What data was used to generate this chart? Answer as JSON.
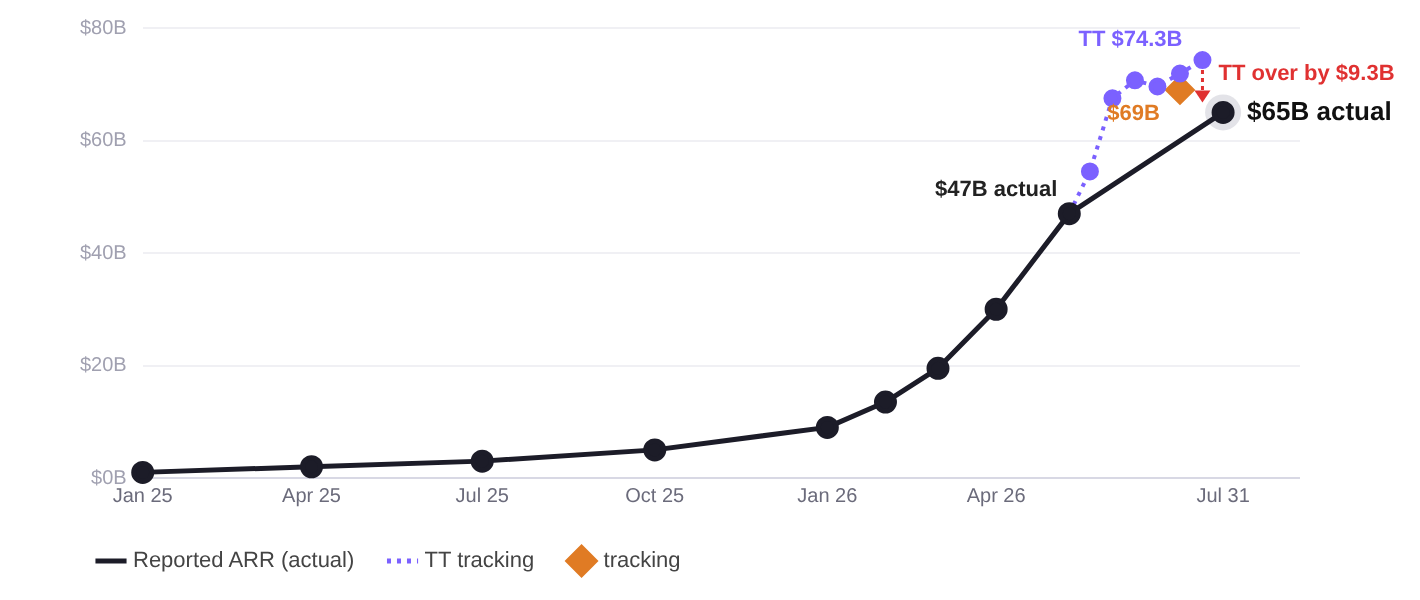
{
  "chart_data": {
    "type": "line",
    "xlim": [
      "2025-01-01",
      "2026-09-10"
    ],
    "xticks": [
      {
        "value": "2025-01-01",
        "label": "Jan 25"
      },
      {
        "value": "2025-04-01",
        "label": "Apr 25"
      },
      {
        "value": "2025-07-01",
        "label": "Jul 25"
      },
      {
        "value": "2025-10-01",
        "label": "Oct 25"
      },
      {
        "value": "2026-01-01",
        "label": "Jan 26"
      },
      {
        "value": "2026-04-01",
        "label": "Apr 26"
      },
      {
        "value": "2026-07-31",
        "label": "Jul 31"
      }
    ],
    "ylim": [
      0,
      80
    ],
    "yticks": [
      {
        "value": 0,
        "label": "$0B"
      },
      {
        "value": 20,
        "label": "$20B"
      },
      {
        "value": 40,
        "label": "$40B"
      },
      {
        "value": 60,
        "label": "$60B"
      },
      {
        "value": 80,
        "label": "$80B"
      }
    ],
    "grid": "y",
    "legend": "bottom",
    "series": [
      {
        "name": "Reported ARR (actual)",
        "color": "#1c1c28",
        "marker": "circle",
        "line_style": "solid",
        "x": [
          "2025-01-01",
          "2025-04-01",
          "2025-07-01",
          "2025-10-01",
          "2026-01-01",
          "2026-02-01",
          "2026-03-01",
          "2026-04-01",
          "2026-05-10",
          "2026-07-31"
        ],
        "values": [
          1,
          2,
          3,
          5,
          9,
          13.5,
          19.5,
          30,
          47,
          65
        ]
      },
      {
        "name": "TT tracking",
        "color": "#7b61ff",
        "marker": "circle",
        "line_style": "dotted",
        "x": [
          "2026-05-10",
          "2026-05-21",
          "2026-06-02",
          "2026-06-14",
          "2026-06-26",
          "2026-07-08",
          "2026-07-20"
        ],
        "values": [
          47,
          54.5,
          67.5,
          70.7,
          69.6,
          71.9,
          74.3
        ]
      },
      {
        "name": "tracking",
        "color": "#e07b24",
        "type": "scatter",
        "marker": "diamond",
        "x": [
          "2026-07-08"
        ],
        "values": [
          69
        ]
      }
    ],
    "annotations": [
      {
        "text": "$47B actual",
        "x": "2026-05-10",
        "y": 47
      },
      {
        "text": "$65B actual",
        "x": "2026-07-31",
        "y": 65
      },
      {
        "text": "TT $74.3B",
        "x": "2026-07-20",
        "y": 74.3
      },
      {
        "text": "$69B",
        "x": "2026-07-08",
        "y": 69
      },
      {
        "text": "TT over by $9.3B",
        "x": "2026-07-20",
        "y": 74.3
      }
    ]
  }
}
